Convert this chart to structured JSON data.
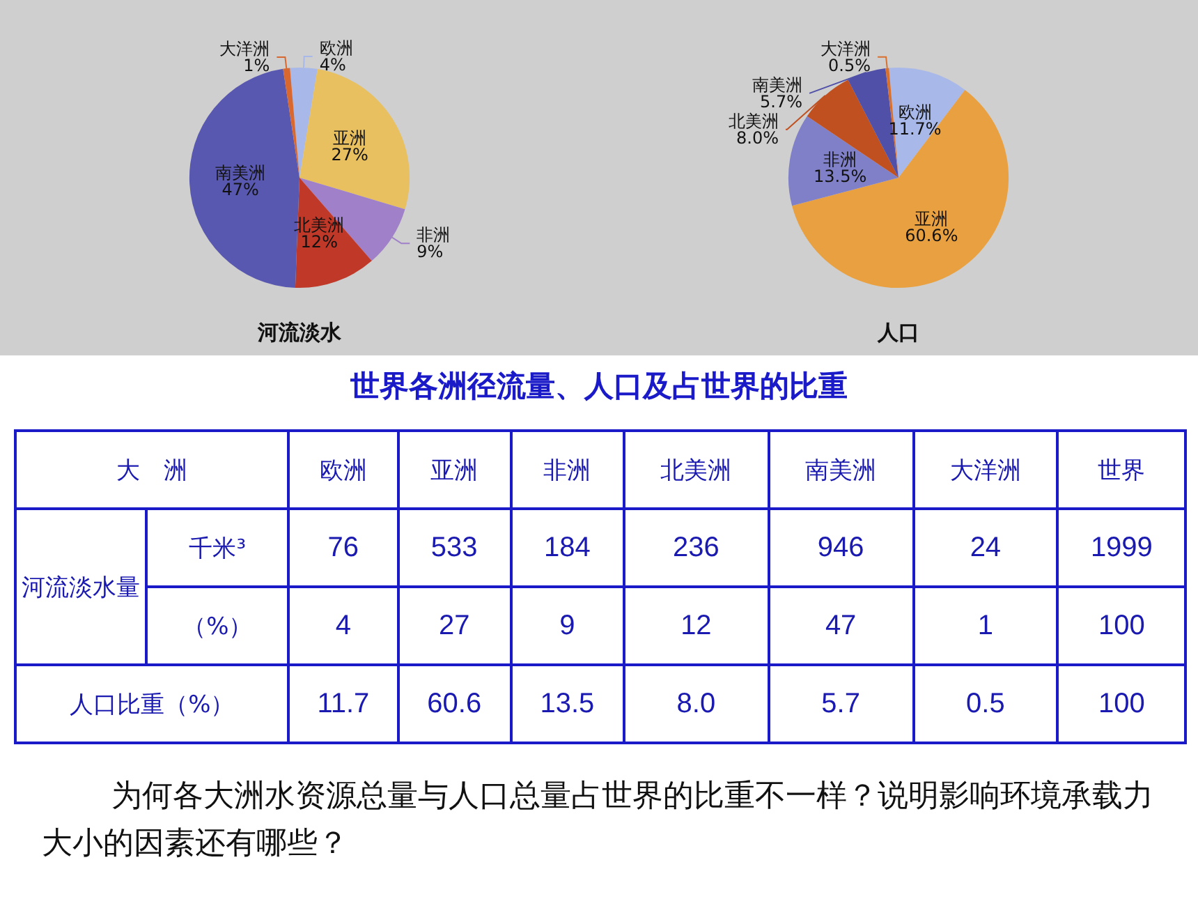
{
  "chart_data": [
    {
      "type": "pie",
      "title": "河流淡水",
      "categories": [
        "欧洲",
        "亚洲",
        "非洲",
        "北美洲",
        "南美洲",
        "大洋洲"
      ],
      "values": [
        4,
        27,
        9,
        12,
        47,
        1
      ],
      "colors": [
        "#a8b8e8",
        "#e8c060",
        "#a080c8",
        "#c03828",
        "#5858b0",
        "#d86830"
      ],
      "value_labels": [
        "4%",
        "27%",
        "9%",
        "12%",
        "47%",
        "1%"
      ],
      "data_labels": true
    },
    {
      "type": "pie",
      "title": "人口",
      "categories": [
        "欧洲",
        "亚洲",
        "非洲",
        "北美洲",
        "南美洲",
        "大洋洲"
      ],
      "values": [
        11.7,
        60.6,
        13.5,
        8.0,
        5.7,
        0.5
      ],
      "colors": [
        "#a8b8e8",
        "#e8a040",
        "#8080c8",
        "#c05020",
        "#5050a8",
        "#d87030"
      ],
      "value_labels": [
        "11.7%",
        "60.6%",
        "13.5%",
        "8.0%",
        "5.7%",
        "0.5%"
      ],
      "data_labels": true
    },
    {
      "type": "other",
      "title": "世界各洲径流量、人口及占世界的比重",
      "xlabel": "大　洲",
      "ylabel": "河流淡水量",
      "categories": [
        "欧洲",
        "亚洲",
        "非洲",
        "北美洲",
        "南美洲",
        "大洋洲",
        "世界"
      ],
      "series": [
        {
          "name": "千米³",
          "values": [
            76,
            533,
            184,
            236,
            946,
            24,
            1999
          ]
        },
        {
          "name": "（%）",
          "values": [
            4,
            27,
            9,
            12,
            47,
            1,
            100
          ]
        },
        {
          "name": "人口比重（%）",
          "values": [
            11.7,
            60.6,
            13.5,
            8.0,
            5.7,
            0.5,
            100
          ],
          "value_labels": [
            "11.7",
            "60.6",
            "13.5",
            "8.0",
            "5.7",
            "0.5",
            "100"
          ]
        }
      ],
      "data_labels": true,
      "annotations": [
        "为何各大洲水资源总量与人口总量占世界的比重不一样？说明影响环境承载力大小的因素还有哪些？"
      ]
    }
  ]
}
